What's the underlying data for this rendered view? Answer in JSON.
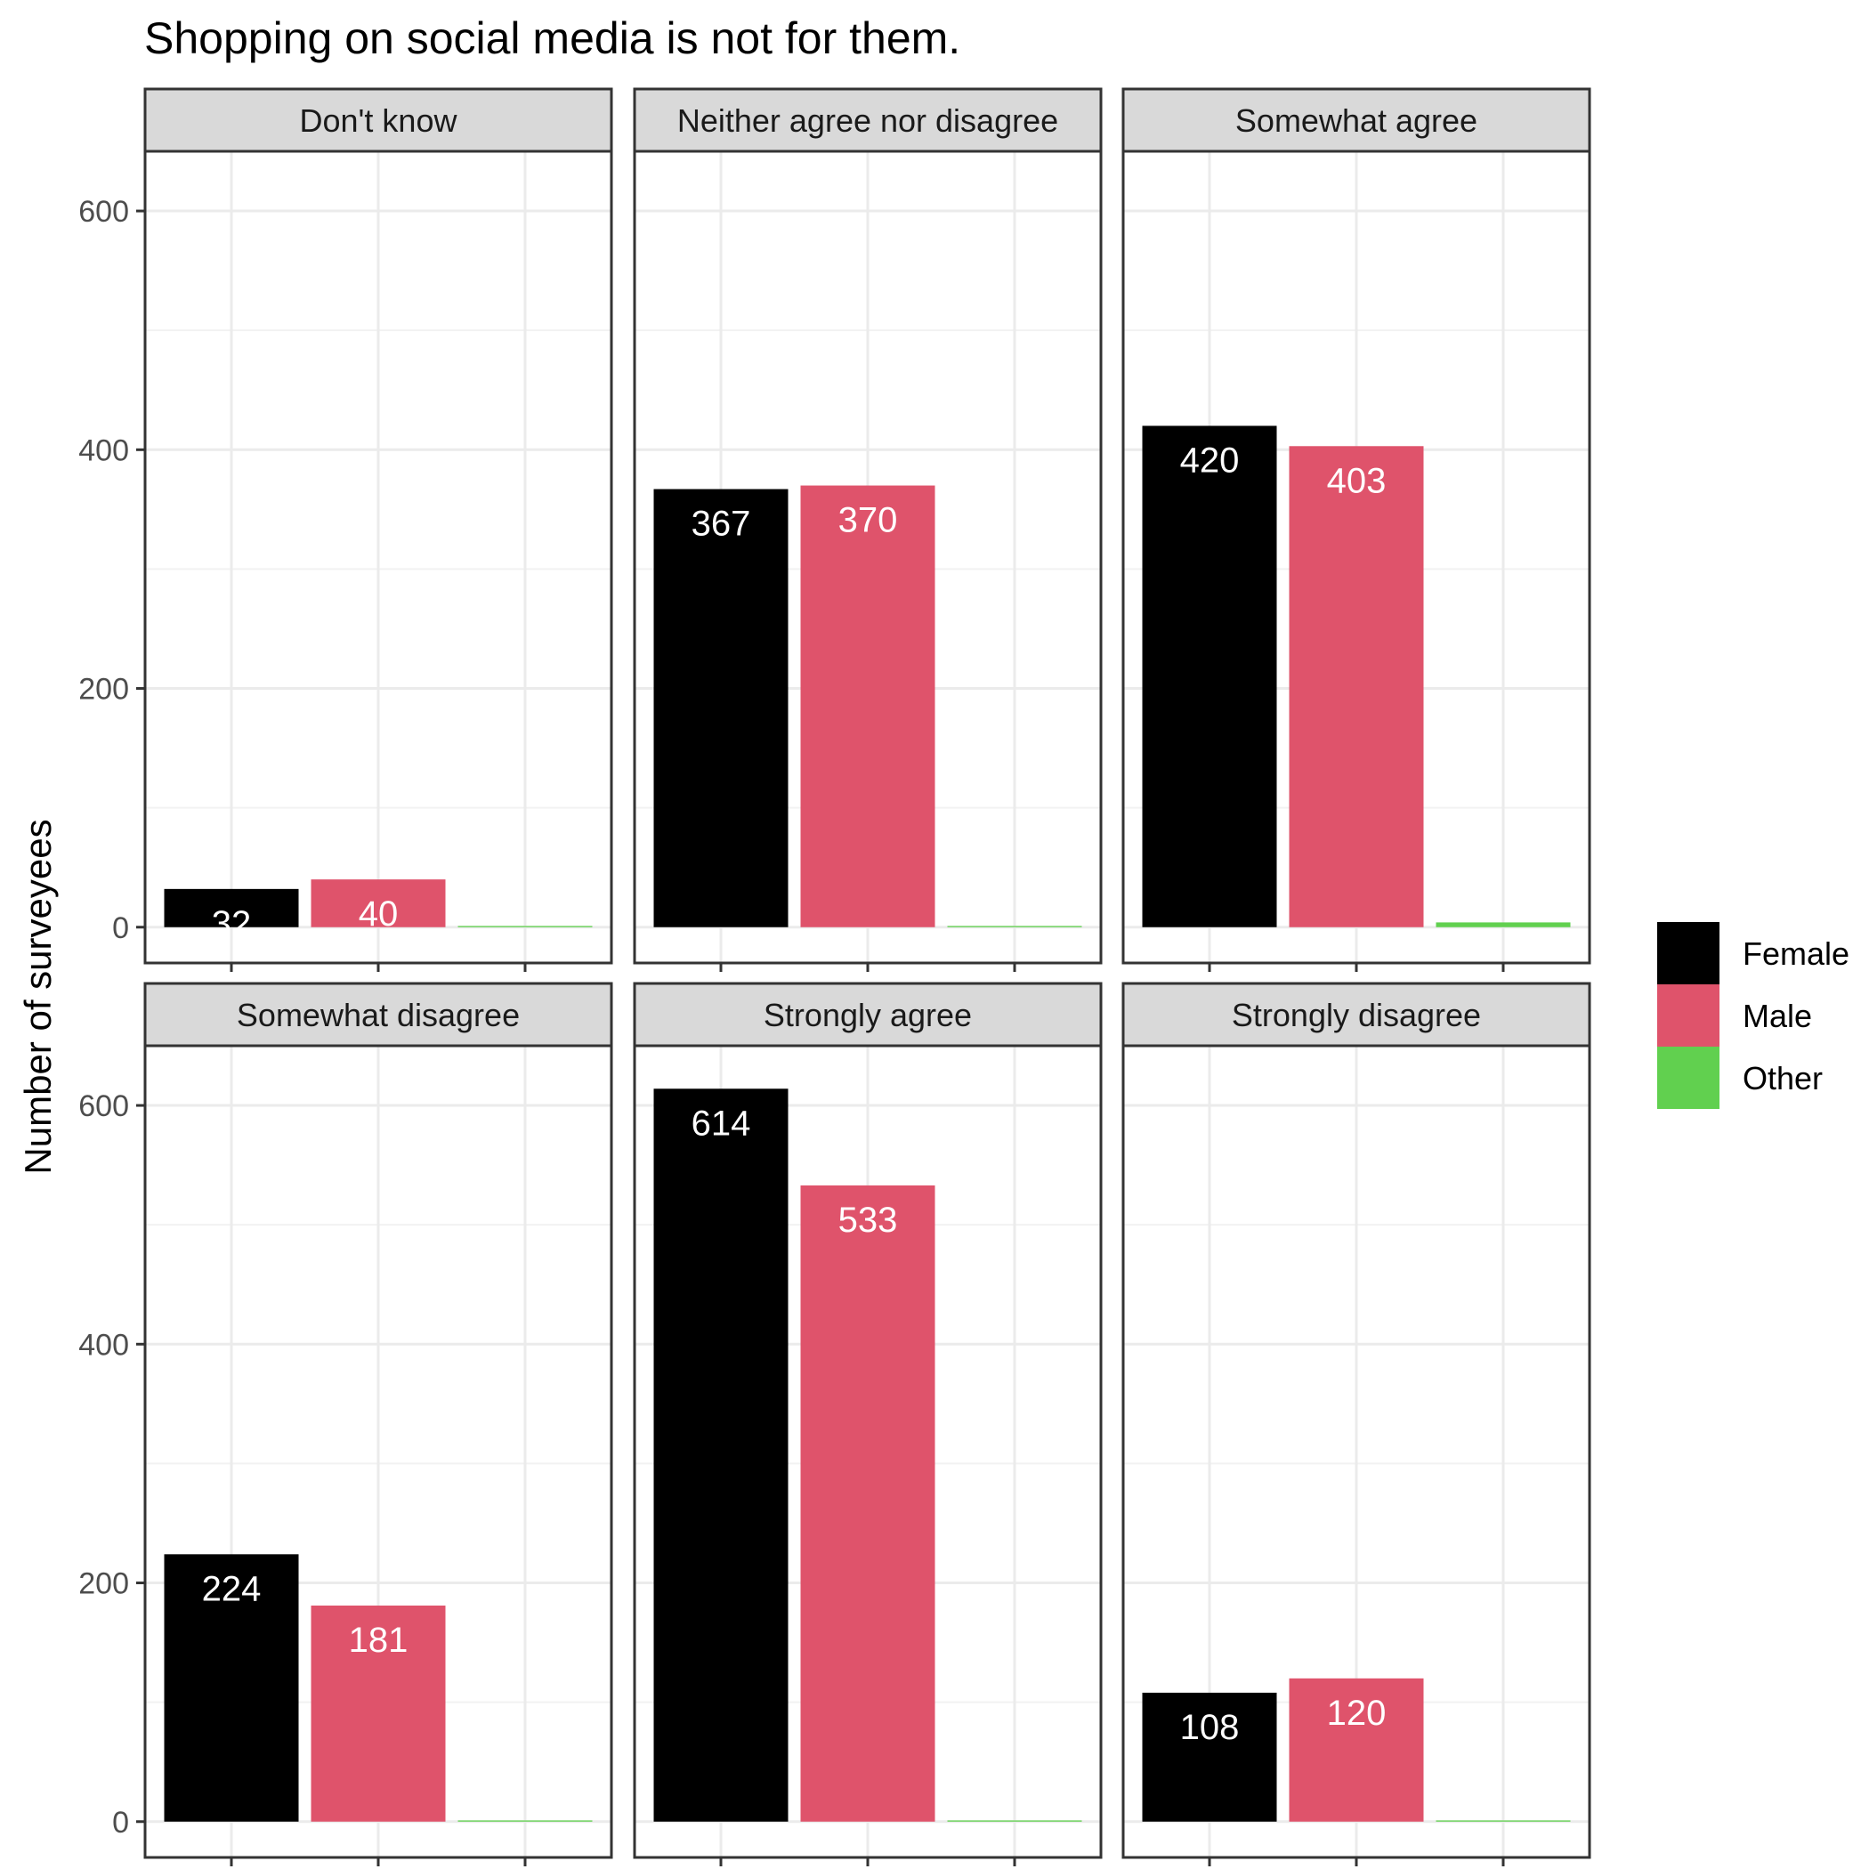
{
  "chart_data": {
    "type": "bar",
    "title": "Shopping on social media is not for them.",
    "ylabel": "Number of surveyees",
    "xlabel": "",
    "ylim": [
      -30,
      650
    ],
    "yticks": [
      0,
      200,
      400,
      600
    ],
    "grid": true,
    "legend_position": "right",
    "categories": [
      "Female",
      "Male",
      "Other"
    ],
    "colors": {
      "Female": "#000000",
      "Male": "#DF536B",
      "Other": "#61D04F"
    },
    "facets": [
      {
        "name": "Don't know",
        "values": [
          32,
          40,
          1
        ]
      },
      {
        "name": "Neither agree nor disagree",
        "values": [
          367,
          370,
          1
        ]
      },
      {
        "name": "Somewhat agree",
        "values": [
          420,
          403,
          4
        ]
      },
      {
        "name": "Somewhat disagree",
        "values": [
          224,
          181,
          1
        ]
      },
      {
        "name": "Strongly agree",
        "values": [
          614,
          533,
          1
        ]
      },
      {
        "name": "Strongly disagree",
        "values": [
          108,
          120,
          1
        ]
      }
    ],
    "data_labels": [
      [
        "32",
        "40",
        ""
      ],
      [
        "367",
        "370",
        ""
      ],
      [
        "420",
        "403",
        ""
      ],
      [
        "224",
        "181",
        ""
      ],
      [
        "614",
        "533",
        ""
      ],
      [
        "108",
        "120",
        ""
      ]
    ],
    "legend": [
      {
        "label": "Female",
        "color": "#000000"
      },
      {
        "label": "Male",
        "color": "#DF536B"
      },
      {
        "label": "Other",
        "color": "#61D04F"
      }
    ]
  }
}
